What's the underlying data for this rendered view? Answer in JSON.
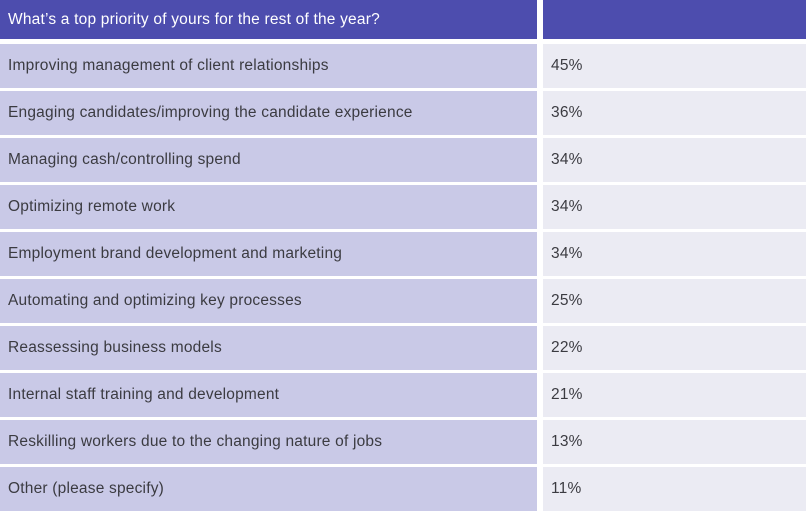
{
  "chart_data": {
    "type": "table",
    "title": "What’s a top priority of yours for the rest of the year?",
    "categories": [
      "Improving management of client relationships",
      "Engaging candidates/improving the candidate experience",
      "Managing cash/controlling spend",
      "Optimizing remote work",
      "Employment brand development and marketing",
      "Automating and optimizing key processes",
      "Reassessing business models",
      "Internal staff training and development",
      "Reskilling workers due to the changing nature of jobs",
      "Other (please specify)"
    ],
    "values": [
      45,
      36,
      34,
      34,
      34,
      25,
      22,
      21,
      13,
      11
    ],
    "value_unit": "%"
  },
  "table": {
    "header": {
      "question": "What’s a top priority of yours for the rest of the year?",
      "value_header": ""
    },
    "rows": [
      {
        "label": "Improving management of client relationships",
        "value": "45%"
      },
      {
        "label": "Engaging candidates/improving the candidate experience",
        "value": "36%"
      },
      {
        "label": "Managing cash/controlling spend",
        "value": "34%"
      },
      {
        "label": "Optimizing remote work",
        "value": "34%"
      },
      {
        "label": "Employment brand development and marketing",
        "value": "34%"
      },
      {
        "label": "Automating and optimizing key processes",
        "value": "25%"
      },
      {
        "label": "Reassessing business models",
        "value": "22%"
      },
      {
        "label": "Internal staff training and development",
        "value": "21%"
      },
      {
        "label": "Reskilling workers due to the changing nature of jobs",
        "value": "13%"
      },
      {
        "label": "Other (please specify)",
        "value": "11%"
      }
    ],
    "colors": {
      "header_bg": "#4d4dae",
      "row_label_bg": "#c9c9e7",
      "row_value_bg": "#ebebf3",
      "text": "#3b3b41",
      "header_text": "#ffffff"
    }
  }
}
